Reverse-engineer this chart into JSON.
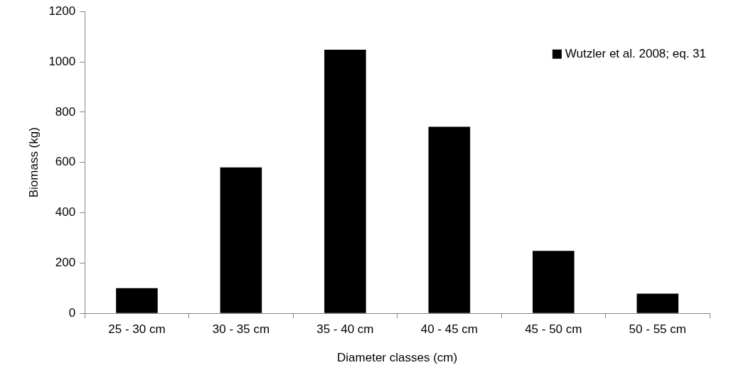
{
  "chart_data": {
    "type": "bar",
    "xlabel": "Diameter classes (cm)",
    "ylabel": "Biomass (kg)",
    "categories": [
      "25 - 30 cm",
      "30 - 35 cm",
      "35 - 40 cm",
      "40 - 45 cm",
      "45 - 50 cm",
      "50 - 55 cm"
    ],
    "series": [
      {
        "name": "Wutzler et al. 2008; eq. 31",
        "color": "#000000",
        "values": [
          100,
          580,
          1048,
          742,
          248,
          78
        ]
      }
    ],
    "ylim": [
      0,
      1200
    ],
    "yticks": [
      0,
      200,
      400,
      600,
      800,
      1000,
      1200
    ],
    "grid": false,
    "legend": "top right"
  }
}
